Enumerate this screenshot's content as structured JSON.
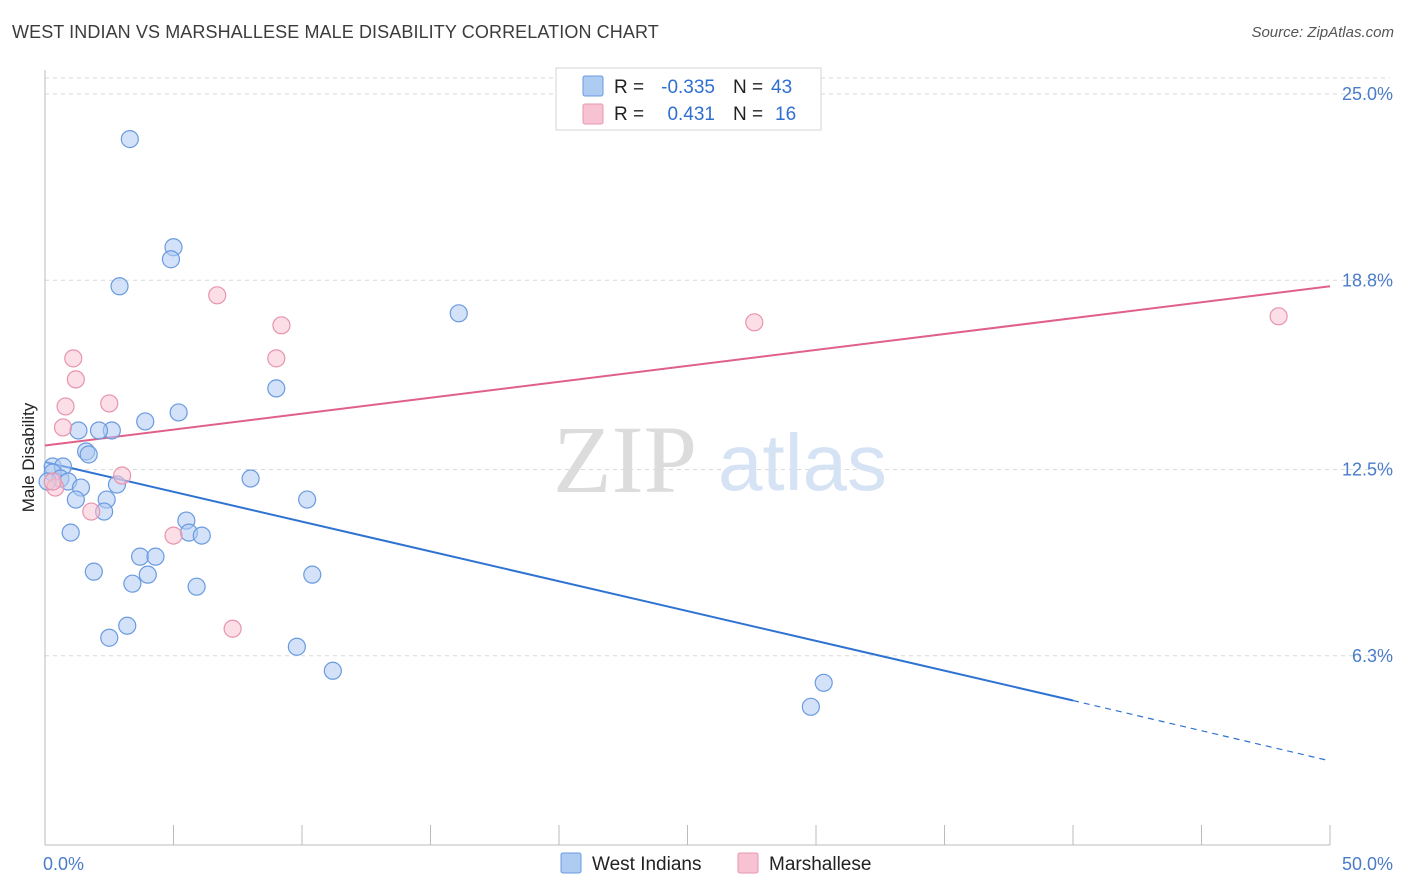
{
  "title": "WEST INDIAN VS MARSHALLESE MALE DISABILITY CORRELATION CHART",
  "source": "Source: ZipAtlas.com",
  "watermark": {
    "zip": "ZIP",
    "atlas": "atlas"
  },
  "colors": {
    "west_indians_fill": "#aecbf2",
    "west_indians_stroke": "#6a9be0",
    "west_indians_line": "#2f73d2",
    "marshallese_fill": "#f7c3d2",
    "marshallese_stroke": "#e894ae",
    "marshallese_line": "#e0608a",
    "tick_label": "#4a7cc9",
    "grid": "#d9d9d9"
  },
  "stats_legend": [
    {
      "r_label": "R =",
      "r_value": "-0.335",
      "n_label": "N =",
      "n_value": "43"
    },
    {
      "r_label": "R =",
      "r_value": "0.431",
      "n_label": "N =",
      "n_value": "16"
    }
  ],
  "chart_data": {
    "type": "scatter",
    "title": "WEST INDIAN VS MARSHALLESE MALE DISABILITY CORRELATION CHART",
    "xlabel": "",
    "ylabel": "Male Disability",
    "xlim": [
      0,
      50
    ],
    "ylim": [
      0,
      25.8
    ],
    "x_tick_labels": [
      "0.0%",
      "50.0%"
    ],
    "y_ticks": [
      6.3,
      12.5,
      18.8,
      25.0
    ],
    "y_tick_labels": [
      "6.3%",
      "12.5%",
      "18.8%",
      "25.0%"
    ],
    "grid": "horizontal dashed",
    "legend_position": "bottom-center",
    "series": [
      {
        "name": "West Indians",
        "points": [
          [
            3.3,
            23.5
          ],
          [
            5.0,
            19.9
          ],
          [
            4.9,
            19.5
          ],
          [
            2.9,
            18.6
          ],
          [
            16.1,
            17.7
          ],
          [
            9.0,
            15.2
          ],
          [
            5.2,
            14.4
          ],
          [
            3.9,
            14.1
          ],
          [
            2.6,
            13.8
          ],
          [
            1.3,
            13.8
          ],
          [
            2.1,
            13.8
          ],
          [
            1.6,
            13.1
          ],
          [
            1.7,
            13.0
          ],
          [
            0.3,
            12.6
          ],
          [
            0.7,
            12.6
          ],
          [
            0.3,
            12.4
          ],
          [
            0.6,
            12.2
          ],
          [
            0.9,
            12.1
          ],
          [
            0.1,
            12.1
          ],
          [
            1.4,
            11.9
          ],
          [
            2.8,
            12.0
          ],
          [
            8.0,
            12.2
          ],
          [
            1.2,
            11.5
          ],
          [
            2.4,
            11.5
          ],
          [
            10.2,
            11.5
          ],
          [
            2.3,
            11.1
          ],
          [
            5.5,
            10.8
          ],
          [
            1.0,
            10.4
          ],
          [
            5.6,
            10.4
          ],
          [
            6.1,
            10.3
          ],
          [
            3.7,
            9.6
          ],
          [
            4.3,
            9.6
          ],
          [
            1.9,
            9.1
          ],
          [
            4.0,
            9.0
          ],
          [
            10.4,
            9.0
          ],
          [
            3.4,
            8.7
          ],
          [
            5.9,
            8.6
          ],
          [
            3.2,
            7.3
          ],
          [
            2.5,
            6.9
          ],
          [
            9.8,
            6.6
          ],
          [
            11.2,
            5.8
          ],
          [
            30.3,
            5.4
          ],
          [
            29.8,
            4.6
          ]
        ]
      },
      {
        "name": "Marshallese",
        "points": [
          [
            6.7,
            18.3
          ],
          [
            9.2,
            17.3
          ],
          [
            27.6,
            17.4
          ],
          [
            48.0,
            17.6
          ],
          [
            1.1,
            16.2
          ],
          [
            9.0,
            16.2
          ],
          [
            1.2,
            15.5
          ],
          [
            2.5,
            14.7
          ],
          [
            0.8,
            14.6
          ],
          [
            0.7,
            13.9
          ],
          [
            3.0,
            12.3
          ],
          [
            0.4,
            11.9
          ],
          [
            0.3,
            12.1
          ],
          [
            1.8,
            11.1
          ],
          [
            5.0,
            10.3
          ],
          [
            7.3,
            7.2
          ]
        ]
      }
    ],
    "trendlines": [
      {
        "series": "West Indians",
        "from": [
          0,
          12.75
        ],
        "solid_to": [
          40,
          4.81
        ],
        "dashed_to": [
          50,
          2.8
        ]
      },
      {
        "series": "Marshallese",
        "from": [
          0,
          13.3
        ],
        "to": [
          50,
          18.6
        ]
      }
    ]
  },
  "bottom_legend": [
    "West Indians",
    "Marshallese"
  ]
}
